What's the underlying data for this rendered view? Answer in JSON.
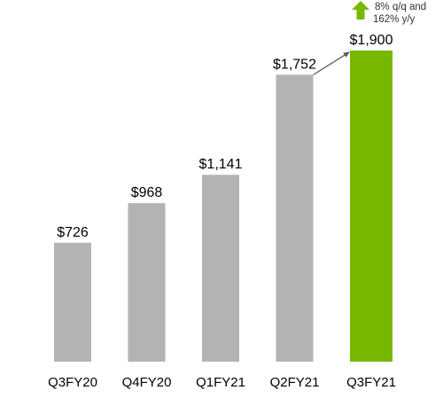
{
  "chart_data": {
    "type": "bar",
    "categories": [
      "Q3FY20",
      "Q4FY20",
      "Q1FY21",
      "Q2FY21",
      "Q3FY21"
    ],
    "values": [
      726,
      968,
      1141,
      1752,
      1900
    ],
    "data_labels": [
      "$726",
      "$968",
      "$1,141",
      "$1,752",
      "$1,900"
    ],
    "ylim": [
      0,
      1900
    ],
    "grid": false,
    "colors": {
      "default_bar": "#b3b3b3",
      "highlight_bar": "#76b900",
      "arrow": "#76b900",
      "connector": "#555555",
      "text": "#000000",
      "annotation_text": "#333333"
    },
    "highlight_index": 4,
    "annotation": {
      "line1": "8% q/q and",
      "line2": "162% y/y"
    }
  }
}
